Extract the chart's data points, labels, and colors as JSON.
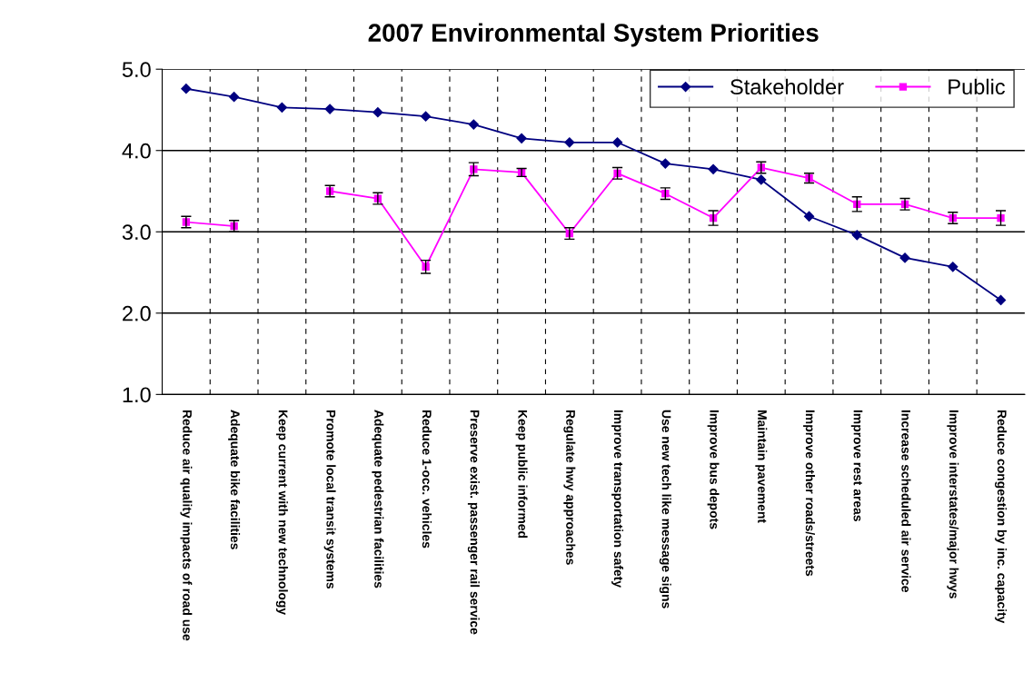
{
  "chart_data": {
    "type": "line",
    "title": "2007 Environmental System Priorities",
    "categories": [
      "Reduce air quality impacts of road use",
      "Adequate bike facilities",
      "Keep current with new technology",
      "Promote local transit systems",
      "Adequate pedestrian facilities",
      "Reduce 1-occ. vehicles",
      "Preserve exist. passenger rail service",
      "Keep public informed",
      "Regulate hwy approaches",
      "Improve transportation safety",
      "Use new tech like message signs",
      "Improve bus depots",
      "Maintain pavement",
      "Improve other roads/streets",
      "Improve rest areas",
      "Increase scheduled air service",
      "Improve interstates/major hwys",
      "Reduce congestion by inc. capacity"
    ],
    "series": [
      {
        "name": "Stakeholder",
        "color": "#000080",
        "marker": "diamond",
        "values": [
          4.76,
          4.66,
          4.53,
          4.51,
          4.47,
          4.42,
          4.32,
          4.15,
          4.1,
          4.1,
          3.84,
          3.77,
          3.64,
          3.19,
          2.96,
          2.68,
          2.57,
          2.16
        ]
      },
      {
        "name": "Public",
        "color": "#ff00ff",
        "marker": "square",
        "values": [
          3.12,
          3.07,
          null,
          3.5,
          3.41,
          2.57,
          3.77,
          3.73,
          2.98,
          3.72,
          3.47,
          3.17,
          3.79,
          3.66,
          3.34,
          3.34,
          3.17,
          3.17
        ],
        "errors": [
          0.07,
          0.07,
          null,
          0.07,
          0.07,
          0.08,
          0.08,
          0.05,
          0.07,
          0.07,
          0.07,
          0.09,
          0.07,
          0.06,
          0.09,
          0.07,
          0.07,
          0.09
        ]
      }
    ],
    "ylim": [
      1.0,
      5.0
    ],
    "yticks": [
      {
        "value": 1,
        "label": "1.0"
      },
      {
        "value": 2,
        "label": "2.0"
      },
      {
        "value": 3,
        "label": "3.0"
      },
      {
        "value": 4,
        "label": "4.0"
      },
      {
        "value": 5,
        "label": "5.0"
      }
    ],
    "grid": true,
    "legend": "top right"
  }
}
